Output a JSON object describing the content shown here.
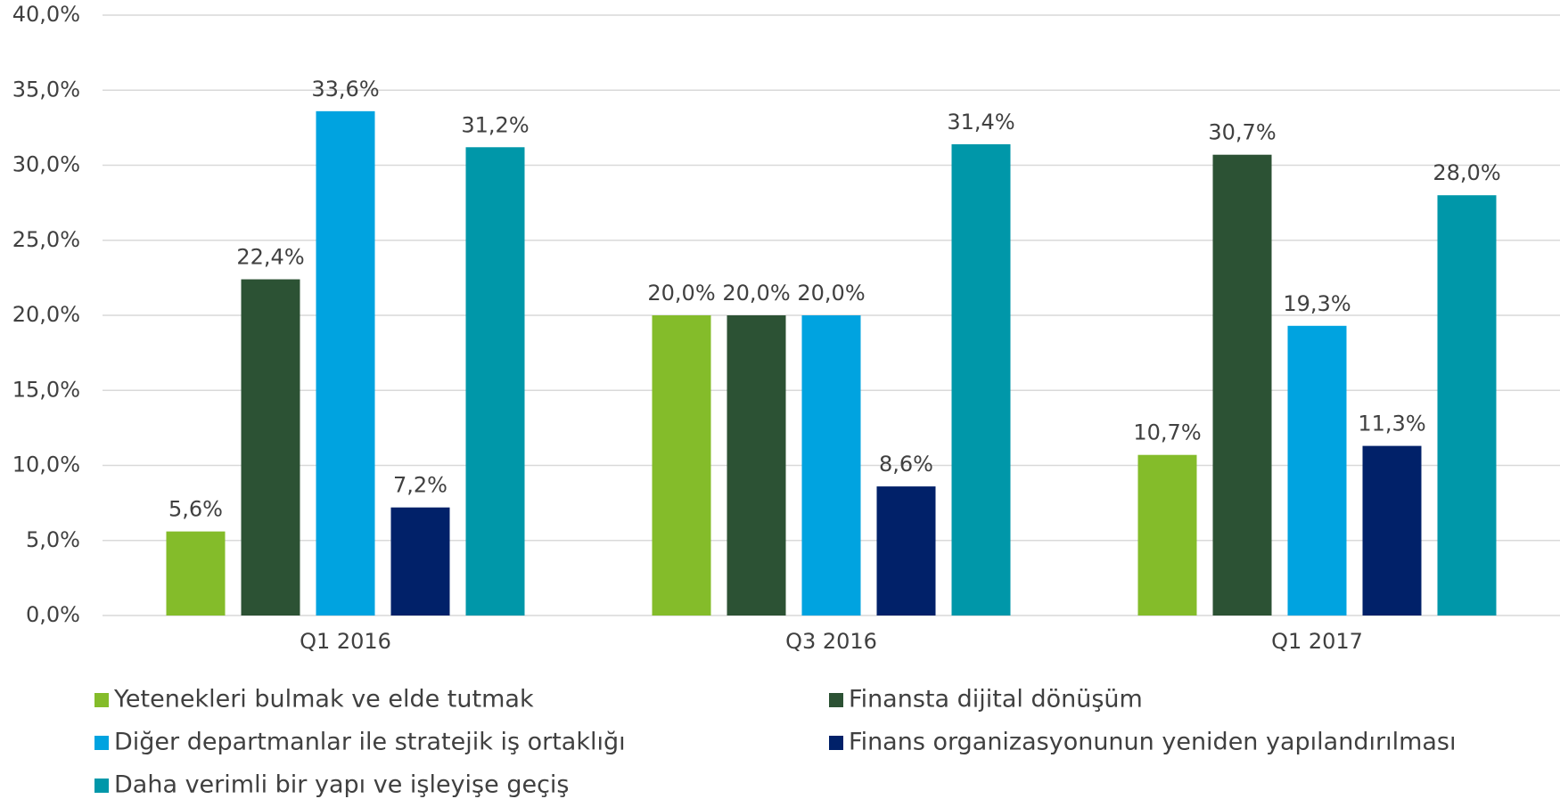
{
  "chart_data": {
    "type": "bar",
    "categories": [
      "Q1 2016",
      "Q3 2016",
      "Q1 2017"
    ],
    "series": [
      {
        "name": "Yetenekleri bulmak ve elde tutmak",
        "color": "#84bc2a",
        "values": [
          5.6,
          20.0,
          10.7
        ],
        "value_labels": [
          "5,6%",
          "20,0%",
          "10,7%"
        ]
      },
      {
        "name": "Finansta dijital dönüşüm",
        "color": "#2c5234",
        "values": [
          22.4,
          20.0,
          30.7
        ],
        "value_labels": [
          "22,4%",
          "20,0%",
          "30,7%"
        ]
      },
      {
        "name": "Diğer departmanlar ile stratejik iş ortaklığı",
        "color": "#00a3e0",
        "values": [
          33.6,
          20.0,
          19.3
        ],
        "value_labels": [
          "33,6%",
          "20,0%",
          "19,3%"
        ]
      },
      {
        "name": "Finans organizasyonunun yeniden yapılandırılması",
        "color": "#012169",
        "values": [
          7.2,
          8.6,
          11.3
        ],
        "value_labels": [
          "7,2%",
          "8,6%",
          "11,3%"
        ]
      },
      {
        "name": "Daha verimli bir yapı ve işleyişe geçiş",
        "color": "#0097a9",
        "values": [
          31.2,
          31.4,
          28.0
        ],
        "value_labels": [
          "31,2%",
          "31,4%",
          "28,0%"
        ]
      }
    ],
    "ylim": [
      0,
      40
    ],
    "yticks": [
      {
        "value": 0,
        "label": "0,0%"
      },
      {
        "value": 5,
        "label": "5,0%"
      },
      {
        "value": 10,
        "label": "10,0%"
      },
      {
        "value": 15,
        "label": "15,0%"
      },
      {
        "value": 20,
        "label": "20,0%"
      },
      {
        "value": 25,
        "label": "25,0%"
      },
      {
        "value": 30,
        "label": "30,0%"
      },
      {
        "value": 35,
        "label": "35,0%"
      },
      {
        "value": 40,
        "label": "40,0%"
      }
    ],
    "grid": true,
    "legend": "bottom"
  }
}
